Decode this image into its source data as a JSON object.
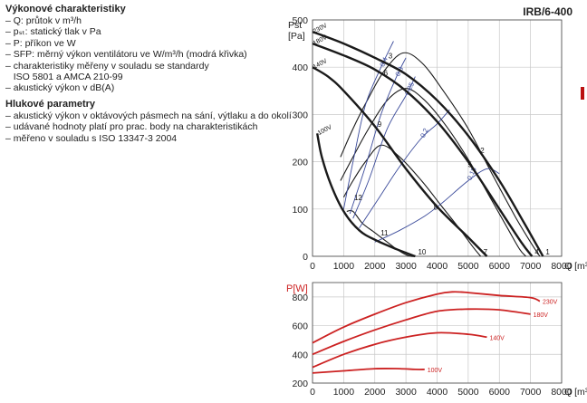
{
  "sidebar": {
    "section1_title": "Výkonové charakteristiky",
    "section1_items": [
      "– Q: průtok v m³/h",
      "– pₛₜ: statický tlak v Pa",
      "– P: příkon ve W",
      "– SFP: měrný výkon ventilátoru ve W/m³/h (modrá křivka)",
      "– charakteristiky měřeny v souladu se standardy",
      "   ISO 5801 a AMCA 210-99",
      "– akustický výkon v dB(A)"
    ],
    "section2_title": "Hlukové parametry",
    "section2_items": [
      "– akustický výkon v oktávových pásmech na sání, výtlaku a do okolí",
      "– udávané hodnoty platí pro prac. body na charakteristikách",
      "– měřeno v souladu s ISO 13347-3 2004"
    ]
  },
  "model": "IRB/6-400",
  "colors": {
    "fan_curves": "#1a1a1a",
    "sfp_curves": "#3a4a9a",
    "power_curves": "#cc2222",
    "grid": "#c8c8c8"
  },
  "chart_data": [
    {
      "type": "line",
      "ylabel": "Pst [Pa]",
      "xlabel": "Q [m³/h]",
      "xlim": [
        0,
        8000
      ],
      "ylim": [
        0,
        500
      ],
      "x_ticks": [
        0,
        1000,
        2000,
        3000,
        4000,
        5000,
        6000,
        7000,
        8000
      ],
      "y_ticks": [
        0,
        100,
        200,
        300,
        400,
        500
      ],
      "grid": true,
      "fan_curves": [
        {
          "name": "230V",
          "x": [
            0,
            1000,
            2000,
            3000,
            4000,
            5000,
            6000,
            6800,
            7400
          ],
          "y": [
            475,
            450,
            420,
            385,
            330,
            255,
            160,
            70,
            0
          ]
        },
        {
          "name": "180V",
          "x": [
            0,
            1000,
            2000,
            3000,
            4000,
            5000,
            6000,
            6700,
            7050
          ],
          "y": [
            450,
            425,
            395,
            350,
            285,
            200,
            100,
            30,
            0
          ]
        },
        {
          "name": "140V",
          "x": [
            0,
            500,
            1000,
            2000,
            3000,
            4000,
            5000,
            5600
          ],
          "y": [
            400,
            380,
            350,
            275,
            185,
            105,
            40,
            0
          ]
        },
        {
          "name": "100V",
          "x": [
            150,
            300,
            600,
            1000,
            1500,
            2000,
            2700,
            3300
          ],
          "y": [
            260,
            210,
            150,
            95,
            55,
            35,
            15,
            0
          ]
        }
      ],
      "resistance_curves": [
        {
          "x": [
            900,
            1300,
            1800,
            2300,
            2900,
            3500,
            4200,
            5000,
            5800,
            6500,
            7000,
            7300
          ],
          "y": [
            210,
            270,
            335,
            392,
            430,
            410,
            350,
            270,
            170,
            85,
            30,
            0
          ]
        },
        {
          "x": [
            900,
            1300,
            1800,
            2400,
            3000,
            3600,
            4300,
            5000,
            5700,
            6300,
            6650,
            6850
          ],
          "y": [
            160,
            210,
            270,
            330,
            355,
            330,
            275,
            205,
            125,
            55,
            15,
            0
          ]
        },
        {
          "x": [
            1000,
            1300,
            1700,
            2200,
            2800,
            3500,
            4100,
            4700,
            5150,
            5400
          ],
          "y": [
            125,
            160,
            200,
            235,
            210,
            160,
            110,
            60,
            20,
            0
          ]
        },
        {
          "x": [
            1100,
            1300,
            1600,
            2000,
            2400,
            2700,
            2950,
            3150,
            3300
          ],
          "y": [
            95,
            95,
            70,
            50,
            30,
            15,
            5,
            0,
            0
          ]
        }
      ],
      "sfp_curves": [
        {
          "name": "0.4",
          "x": [
            1000,
            1300,
            1700,
            2200,
            2600
          ],
          "y": [
            100,
            200,
            320,
            400,
            455
          ]
        },
        {
          "name": "0.3",
          "x": [
            1200,
            1700,
            2200,
            2700,
            3000
          ],
          "y": [
            90,
            190,
            300,
            380,
            420
          ]
        },
        {
          "name": "0.25",
          "x": [
            1300,
            1800,
            2400,
            3000,
            3300
          ],
          "y": [
            80,
            160,
            270,
            340,
            380
          ]
        },
        {
          "name": "0.2",
          "x": [
            1500,
            2100,
            2800,
            3500,
            4000,
            4400
          ],
          "y": [
            60,
            120,
            190,
            250,
            280,
            310
          ]
        },
        {
          "name": "0.15",
          "x": [
            2000,
            2800,
            3600,
            4200,
            5000,
            5600,
            6000
          ],
          "y": [
            30,
            55,
            85,
            115,
            160,
            185,
            175
          ]
        }
      ],
      "operating_points": [
        {
          "label": "1",
          "x": 7400,
          "y": 0
        },
        {
          "label": "2",
          "x": 5300,
          "y": 215
        },
        {
          "label": "3",
          "x": 2350,
          "y": 415
        },
        {
          "label": "4",
          "x": 7050,
          "y": 0
        },
        {
          "label": "5",
          "x": 4900,
          "y": 185
        },
        {
          "label": "6",
          "x": 2200,
          "y": 378
        },
        {
          "label": "7",
          "x": 5400,
          "y": 0
        },
        {
          "label": "8",
          "x": 3800,
          "y": 95
        },
        {
          "label": "9",
          "x": 2000,
          "y": 270
        },
        {
          "label": "10",
          "x": 3300,
          "y": 0
        },
        {
          "label": "11",
          "x": 2100,
          "y": 40
        },
        {
          "label": "12",
          "x": 1250,
          "y": 115
        }
      ]
    },
    {
      "type": "line",
      "ylabel": "P[W]",
      "xlabel": "Q [m³/h]",
      "xlim": [
        0,
        8000
      ],
      "ylim": [
        200,
        900
      ],
      "x_ticks": [
        0,
        1000,
        2000,
        3000,
        4000,
        5000,
        6000,
        7000,
        8000
      ],
      "y_ticks": [
        200,
        400,
        600,
        800
      ],
      "grid": true,
      "series": [
        {
          "name": "230V",
          "x": [
            0,
            1000,
            2000,
            3000,
            4000,
            4500,
            5000,
            6000,
            7000,
            7300
          ],
          "y": [
            480,
            590,
            680,
            760,
            820,
            835,
            830,
            810,
            795,
            770
          ]
        },
        {
          "name": "180V",
          "x": [
            0,
            1000,
            2000,
            3000,
            4000,
            5000,
            6000,
            7000
          ],
          "y": [
            400,
            490,
            570,
            640,
            700,
            715,
            710,
            680
          ]
        },
        {
          "name": "140V",
          "x": [
            0,
            1000,
            2000,
            3000,
            4000,
            5000,
            5600
          ],
          "y": [
            310,
            400,
            470,
            520,
            550,
            540,
            520
          ]
        },
        {
          "name": "100V",
          "x": [
            0,
            1000,
            2000,
            2800,
            3300,
            3600
          ],
          "y": [
            270,
            285,
            300,
            300,
            295,
            295
          ]
        }
      ]
    }
  ]
}
